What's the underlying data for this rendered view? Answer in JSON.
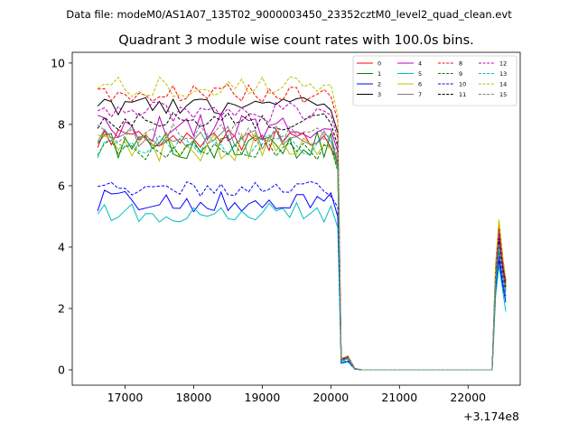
{
  "suptitle": "Data file: modeM0/AS1A07_135T02_9000003450_23352cztM0_level2_quad_clean.evt",
  "chart_data": {
    "type": "line",
    "title": "Quadrant 3 module wise count rates with 100.0s bins.",
    "xlabel": "",
    "ylabel": "",
    "x_offset_label": "+3.174e8",
    "xlim": [
      16230,
      22760
    ],
    "ylim": [
      -0.5,
      10.35
    ],
    "xticks": [
      17000,
      18000,
      19000,
      20000,
      21000,
      22000
    ],
    "xtick_labels": [
      "17000",
      "18000",
      "19000",
      "20000",
      "21000",
      "22000"
    ],
    "yticks": [
      0,
      2,
      4,
      6,
      8,
      10
    ],
    "ytick_labels": [
      "0",
      "2",
      "4",
      "6",
      "8",
      "10"
    ],
    "grid": false,
    "legend": {
      "position": "top-right",
      "columns": 4
    },
    "x_segments": [
      {
        "start": 16600,
        "end": 20100,
        "step": 100
      },
      {
        "start": 20150,
        "end": 22350,
        "step": 100
      },
      {
        "start": 22400,
        "end": 22550,
        "step": 50
      }
    ],
    "drop_profile": [
      0.6,
      0.05,
      0.005
    ],
    "series": [
      {
        "name": "0",
        "color": "#ff0000",
        "dash": "solid",
        "level": 7.5,
        "noise": 0.35,
        "peak": 4.3,
        "tail": 2.9
      },
      {
        "name": "1",
        "color": "#008000",
        "dash": "solid",
        "level": 7.3,
        "noise": 0.45,
        "peak": 4.1,
        "tail": 2.7
      },
      {
        "name": "2",
        "color": "#0000ff",
        "dash": "solid",
        "level": 5.55,
        "noise": 0.4,
        "peak": 3.6,
        "tail": 2.2
      },
      {
        "name": "3",
        "color": "#000000",
        "dash": "solid",
        "level": 8.6,
        "noise": 0.3,
        "peak": 4.6,
        "tail": 2.9
      },
      {
        "name": "4",
        "color": "#bf00bf",
        "dash": "solid",
        "level": 7.9,
        "noise": 0.45,
        "peak": 4.4,
        "tail": 2.8
      },
      {
        "name": "5",
        "color": "#00bfbf",
        "dash": "solid",
        "level": 5.15,
        "noise": 0.35,
        "peak": 3.4,
        "tail": 1.9
      },
      {
        "name": "6",
        "color": "#bfbf00",
        "dash": "solid",
        "level": 7.3,
        "noise": 0.5,
        "peak": 4.9,
        "tail": 2.6
      },
      {
        "name": "7",
        "color": "#808080",
        "dash": "solid",
        "level": 7.6,
        "noise": 0.4,
        "peak": 4.2,
        "tail": 2.5
      },
      {
        "name": "8",
        "color": "#ff0000",
        "dash": "dashed",
        "level": 9.0,
        "noise": 0.3,
        "peak": 4.7,
        "tail": 2.8
      },
      {
        "name": "9",
        "color": "#008000",
        "dash": "dashed",
        "level": 7.2,
        "noise": 0.35,
        "peak": 3.9,
        "tail": 2.6
      },
      {
        "name": "10",
        "color": "#0000ff",
        "dash": "dashed",
        "level": 5.9,
        "noise": 0.25,
        "peak": 3.8,
        "tail": 2.4
      },
      {
        "name": "11",
        "color": "#000000",
        "dash": "dashed",
        "level": 8.1,
        "noise": 0.3,
        "peak": 4.3,
        "tail": 2.7
      },
      {
        "name": "12",
        "color": "#bf00bf",
        "dash": "dashed",
        "level": 8.4,
        "noise": 0.35,
        "peak": 4.5,
        "tail": 2.9
      },
      {
        "name": "13",
        "color": "#00bfbf",
        "dash": "dashed",
        "level": 7.3,
        "noise": 0.4,
        "peak": 4.0,
        "tail": 2.3
      },
      {
        "name": "14",
        "color": "#bfbf00",
        "dash": "dashed",
        "level": 9.2,
        "noise": 0.35,
        "peak": 4.8,
        "tail": 3.0
      },
      {
        "name": "15",
        "color": "#808080",
        "dash": "dashed",
        "level": 7.7,
        "noise": 0.35,
        "peak": 4.1,
        "tail": 2.6
      }
    ]
  }
}
